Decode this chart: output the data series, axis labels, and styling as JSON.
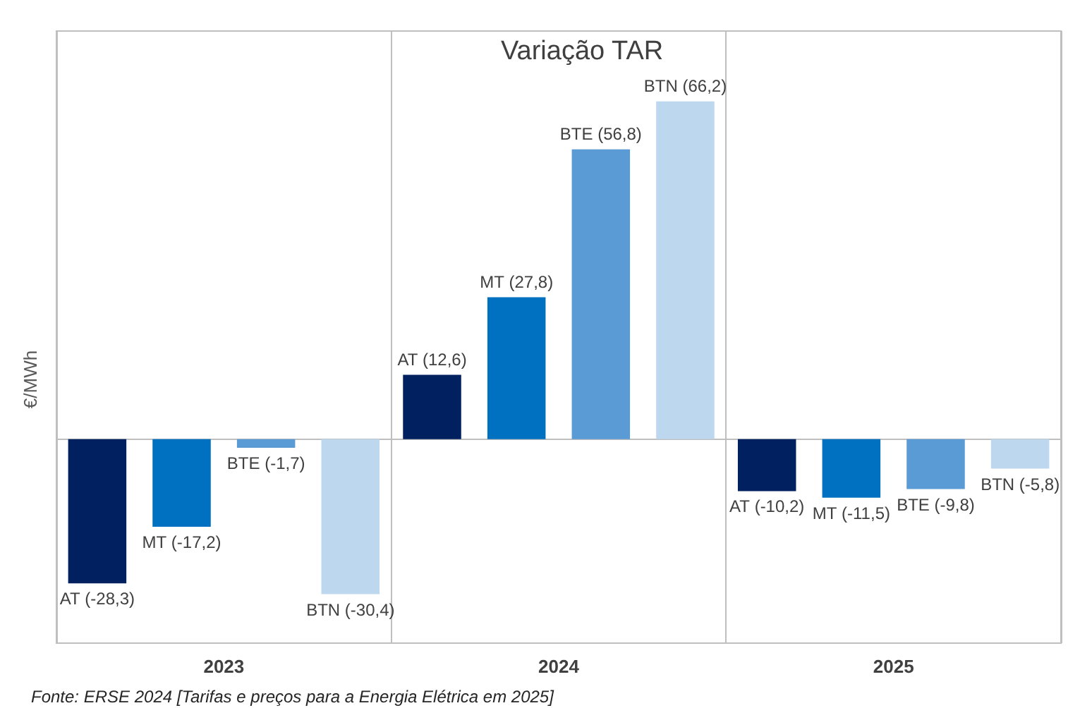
{
  "chart_data": {
    "type": "bar",
    "title": "Variação TAR",
    "ylabel": "€/MWh",
    "categories": [
      "2023",
      "2024",
      "2025"
    ],
    "series": [
      {
        "name": "AT",
        "color": "#002060",
        "values": [
          -28.3,
          12.6,
          -10.2
        ],
        "value_labels": [
          "(-28,3)",
          "(12,6)",
          "(-10,2)"
        ]
      },
      {
        "name": "MT",
        "color": "#0070c0",
        "values": [
          -17.2,
          27.8,
          -11.5
        ],
        "value_labels": [
          "(-17,2)",
          "(27,8)",
          "(-11,5)"
        ]
      },
      {
        "name": "BTE",
        "color": "#5b9bd5",
        "values": [
          -1.7,
          56.8,
          -9.8
        ],
        "value_labels": [
          "(-1,7)",
          "(56,8)",
          "(-9,8)"
        ]
      },
      {
        "name": "BTN",
        "color": "#bdd7ee",
        "values": [
          -30.4,
          66.2,
          -5.8
        ],
        "value_labels": [
          "(-30,4)",
          "(66,2)",
          "(-5,8)"
        ]
      }
    ],
    "ylim": [
      -40,
      80
    ],
    "tick_labels": "x",
    "grid": "x",
    "annotations": [
      "Fonte: ERSE 2024 [Tarifas e preços para a Energia Elétrica em 2025]"
    ]
  }
}
